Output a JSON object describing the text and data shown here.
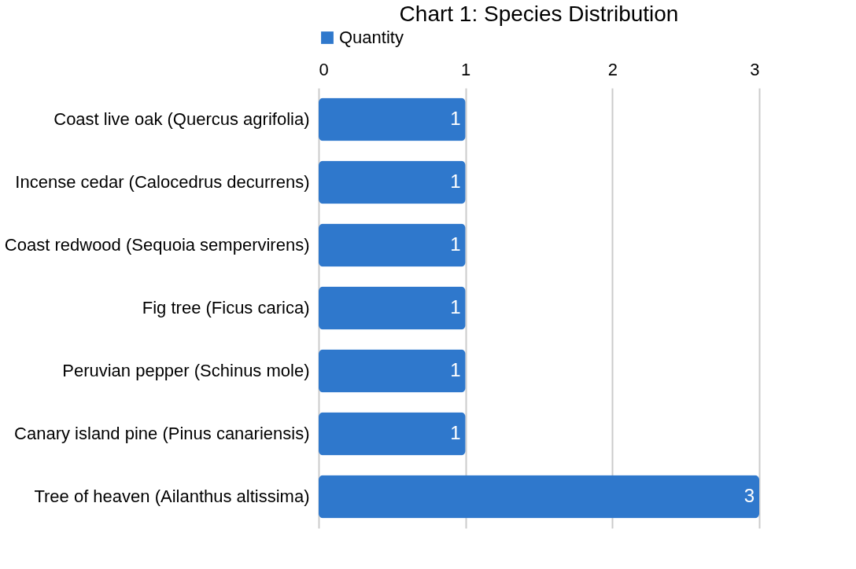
{
  "chart_data": {
    "type": "bar",
    "orientation": "horizontal",
    "title": "Chart 1: Species Distribution",
    "categories": [
      "Coast live oak (Quercus agrifolia)",
      "Incense cedar (Calocedrus decurrens)",
      "Coast redwood (Sequoia sempervirens)",
      "Fig tree (Ficus carica)",
      "Peruvian pepper (Schinus mole)",
      "Canary island pine (Pinus canariensis)",
      "Tree of heaven (Ailanthus altissima)"
    ],
    "series": [
      {
        "name": "Quantity",
        "color": "#2f78cc",
        "values": [
          1,
          1,
          1,
          1,
          1,
          1,
          3
        ]
      }
    ],
    "xlim": [
      0,
      3
    ],
    "xticks": [
      0,
      1,
      2,
      3
    ],
    "grid": "x",
    "legend": "top",
    "data_labels": true
  }
}
